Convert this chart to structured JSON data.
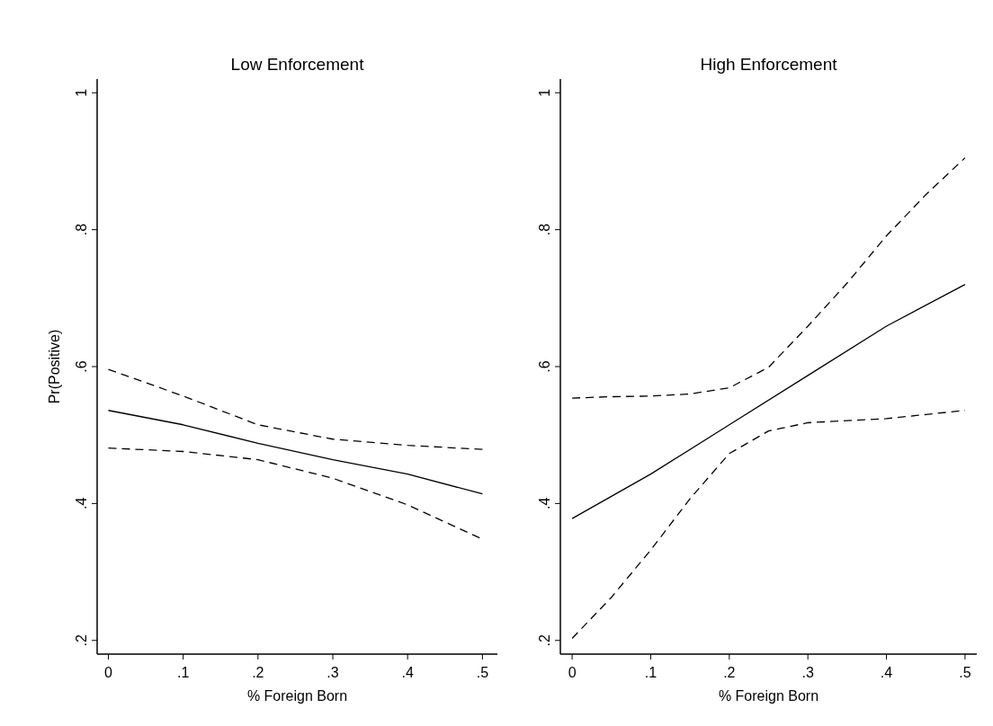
{
  "chart_data": [
    {
      "type": "line",
      "title": "Low Enforcement",
      "xlabel": "% Foreign Born",
      "ylabel": "Pr(Positive)",
      "xlim": [
        -0.015,
        0.52
      ],
      "ylim": [
        0.18,
        1.02
      ],
      "xticks": [
        0,
        {
          "value": 0.1,
          "label": ".1"
        },
        {
          "value": 0.2,
          "label": ".2"
        },
        {
          "value": 0.3,
          "label": ".3"
        },
        {
          "value": 0.4,
          "label": ".4"
        },
        {
          "value": 0.5,
          "label": ".5"
        }
      ],
      "yticks": [
        {
          "value": 0.2,
          "label": ".2"
        },
        {
          "value": 0.4,
          "label": ".4"
        },
        {
          "value": 0.6,
          "label": ".6"
        },
        {
          "value": 0.8,
          "label": ".8"
        },
        1
      ],
      "x": [
        0,
        0.1,
        0.2,
        0.3,
        0.4,
        0.5
      ],
      "series": [
        {
          "color": "#000000",
          "line_style": "solid",
          "values": [
            0.536,
            0.515,
            0.488,
            0.464,
            0.443,
            0.414
          ]
        },
        {
          "color": "#000000",
          "line_style": "dashed",
          "values": [
            0.596,
            0.557,
            0.515,
            0.494,
            0.485,
            0.479
          ]
        },
        {
          "color": "#000000",
          "line_style": "dashed",
          "values": [
            0.481,
            0.476,
            0.464,
            0.437,
            0.398,
            0.348
          ]
        }
      ]
    },
    {
      "type": "line",
      "title": "High Enforcement",
      "xlabel": "% Foreign Born",
      "xlim": [
        -0.015,
        0.515
      ],
      "ylim": [
        0.18,
        1.02
      ],
      "xticks": [
        0,
        {
          "value": 0.1,
          "label": ".1"
        },
        {
          "value": 0.2,
          "label": ".2"
        },
        {
          "value": 0.3,
          "label": ".3"
        },
        {
          "value": 0.4,
          "label": ".4"
        },
        {
          "value": 0.5,
          "label": ".5"
        }
      ],
      "yticks": [
        {
          "value": 0.2,
          "label": ".2"
        },
        {
          "value": 0.4,
          "label": ".4"
        },
        {
          "value": 0.6,
          "label": ".6"
        },
        {
          "value": 0.8,
          "label": ".8"
        },
        1
      ],
      "x": [
        0,
        0.05,
        0.1,
        0.15,
        0.2,
        0.25,
        0.3,
        0.35,
        0.4,
        0.45,
        0.5
      ],
      "series": [
        {
          "color": "#000000",
          "line_style": "solid",
          "x": [
            0,
            0.1,
            0.2,
            0.3,
            0.4,
            0.5
          ],
          "values": [
            0.378,
            0.443,
            0.515,
            0.587,
            0.659,
            0.72
          ]
        },
        {
          "color": "#000000",
          "line_style": "dashed",
          "values": [
            0.554,
            0.556,
            0.557,
            0.56,
            0.569,
            0.599,
            0.659,
            0.722,
            0.791,
            0.851,
            0.905
          ]
        },
        {
          "color": "#000000",
          "line_style": "dashed",
          "values": [
            0.203,
            0.263,
            0.332,
            0.407,
            0.473,
            0.506,
            0.518,
            0.521,
            0.524,
            0.53,
            0.536
          ]
        }
      ]
    }
  ]
}
